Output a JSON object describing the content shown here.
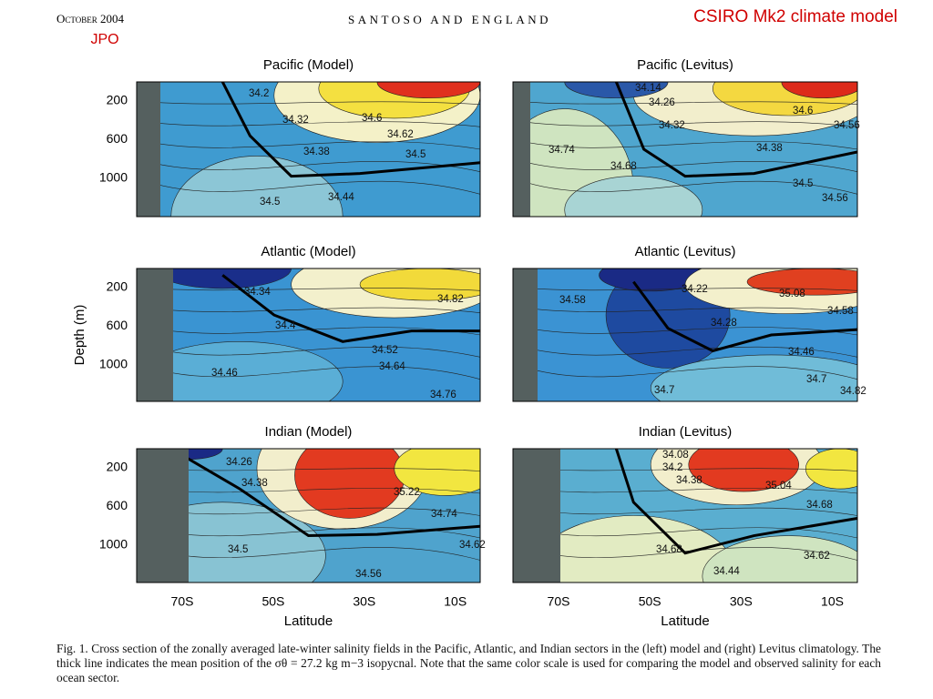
{
  "header": {
    "date": "October 2004",
    "authors": "SANTOSO AND ENGLAND",
    "note": "CSIRO Mk2 climate model",
    "journal": "JPO"
  },
  "panels": [
    {
      "title": "Pacific (Model)",
      "contour_labels": [
        "34.2",
        "34.32",
        "34.6",
        "34.62",
        "34.38",
        "34.5",
        "34.44",
        "34.5"
      ]
    },
    {
      "title": "Pacific (Levitus)",
      "contour_labels": [
        "34.14",
        "34.26",
        "34.32",
        "34.6",
        "34.56",
        "34.74",
        "34.38",
        "34.68",
        "34.5",
        "34.56"
      ]
    },
    {
      "title": "Atlantic (Model)",
      "contour_labels": [
        "34.34",
        "34.82",
        "34.4",
        "34.52",
        "34.64",
        "34.46",
        "34.76"
      ]
    },
    {
      "title": "Atlantic (Levitus)",
      "contour_labels": [
        "34.58",
        "34.22",
        "35.08",
        "34.28",
        "34.58",
        "34.46",
        "34.7",
        "34.7",
        "34.82"
      ]
    },
    {
      "title": "Indian (Model)",
      "contour_labels": [
        "34.26",
        "34.38",
        "35.22",
        "34.74",
        "34.62",
        "34.5",
        "34.56"
      ]
    },
    {
      "title": "Indian (Levitus)",
      "contour_labels": [
        "34.08",
        "34.2",
        "34.38",
        "35.04",
        "34.68",
        "34.68",
        "34.62",
        "34.44"
      ]
    }
  ],
  "axes": {
    "y_label": "Depth (m)",
    "x_label": "Latitude",
    "y_ticks": [
      "200",
      "600",
      "1000"
    ],
    "x_ticks": [
      "70S",
      "50S",
      "30S",
      "10S"
    ]
  },
  "caption": "Fig. 1. Cross section of the zonally averaged late-winter salinity fields in the Pacific, Atlantic, and Indian sectors in the (left) model and (right) Levitus climatology. The thick line indicates the mean position of the σθ = 27.2 kg m−3 isopycnal. Note that the same color scale is used for comparing the model and observed salinity for each ocean sector."
}
